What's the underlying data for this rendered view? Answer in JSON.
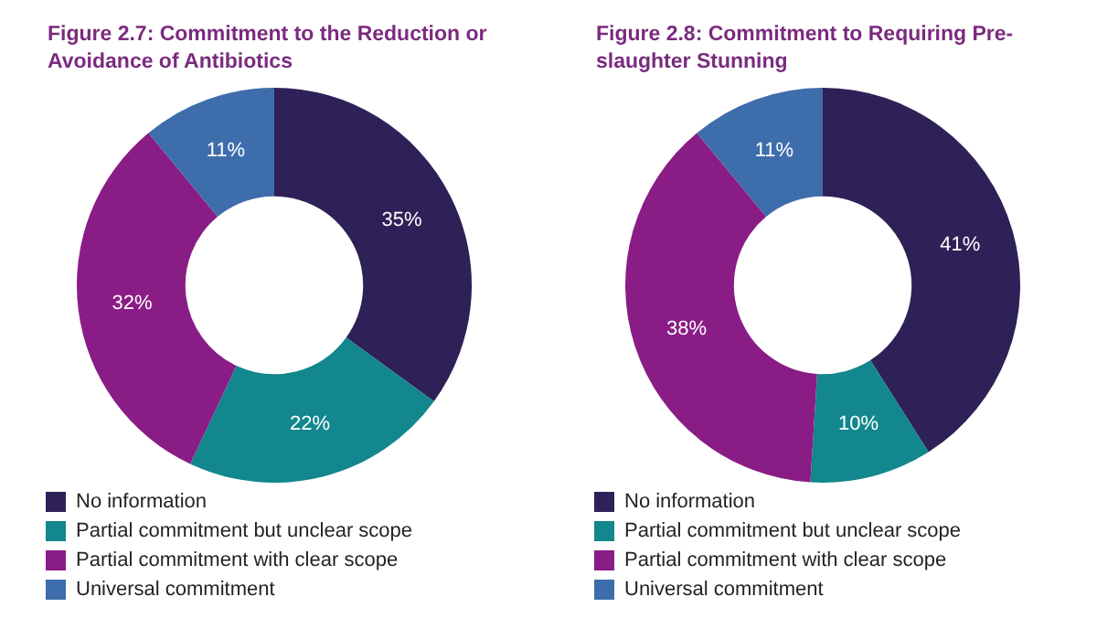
{
  "chart_data": [
    {
      "type": "donut",
      "title": "Figure 2.7: Commitment to the Reduction or Avoidance of Antibiotics",
      "categories": [
        "No information",
        "Partial commitment but unclear scope",
        "Partial commitment with clear scope",
        "Universal commitment"
      ],
      "values": [
        35,
        22,
        32,
        11
      ],
      "colors": [
        "#2e2157",
        "#12878d",
        "#8a1c85",
        "#3e6dab"
      ],
      "value_labels": [
        "35%",
        "22%",
        "32%",
        "11%"
      ],
      "legend": "bottom"
    },
    {
      "type": "donut",
      "title": "Figure 2.8: Commitment to Requiring Pre-slaughter Stunning",
      "categories": [
        "No information",
        "Partial commitment but unclear scope",
        "Partial commitment with clear scope",
        "Universal commitment"
      ],
      "values": [
        41,
        10,
        38,
        11
      ],
      "colors": [
        "#2e2157",
        "#12878d",
        "#8a1c85",
        "#3e6dab"
      ],
      "value_labels": [
        "41%",
        "10%",
        "38%",
        "11%"
      ],
      "legend": "bottom"
    }
  ]
}
